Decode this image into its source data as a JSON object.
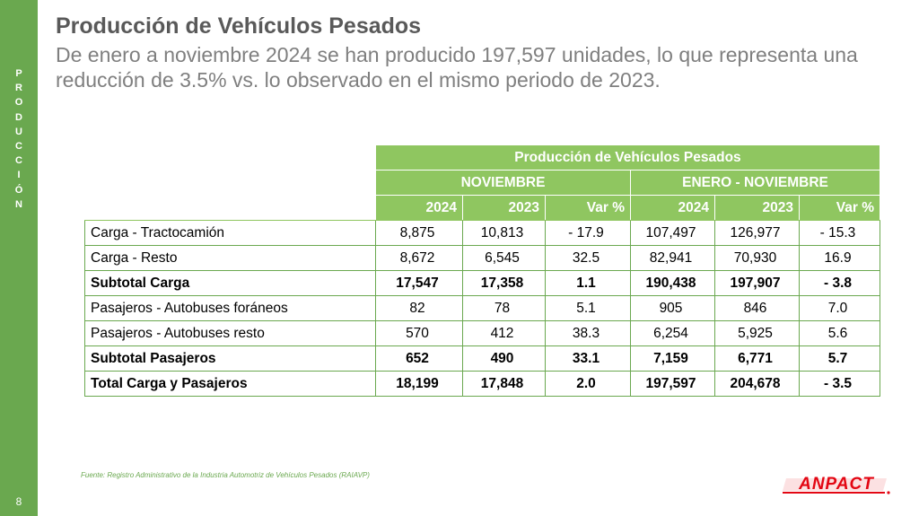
{
  "sidebar": {
    "section_label": [
      "P",
      "R",
      "O",
      "D",
      "U",
      "C",
      "C",
      "I",
      "Ó",
      "N"
    ],
    "page_number": "8"
  },
  "header": {
    "title": "Producción de Vehículos Pesados",
    "subtitle": "De enero a noviembre 2024 se han producido 197,597 unidades, lo que representa una reducción de 3.5% vs. lo observado en el mismo periodo de 2023."
  },
  "table": {
    "title": "Producción de Vehículos Pesados",
    "groups": [
      "NOVIEMBRE",
      "ENERO - NOVIEMBRE"
    ],
    "columns": [
      "2024",
      "2023",
      "Var %",
      "2024",
      "2023",
      "Var %"
    ],
    "rows": [
      {
        "label": "Carga - Tractocamión",
        "bold": false,
        "values": [
          "8,875",
          "10,813",
          "- 17.9",
          "107,497",
          "126,977",
          "- 15.3"
        ]
      },
      {
        "label": "Carga - Resto",
        "bold": false,
        "values": [
          "8,672",
          "6,545",
          "32.5",
          "82,941",
          "70,930",
          "16.9"
        ]
      },
      {
        "label": "Subtotal Carga",
        "bold": true,
        "values": [
          "17,547",
          "17,358",
          "1.1",
          "190,438",
          "197,907",
          "- 3.8"
        ]
      },
      {
        "label": "Pasajeros - Autobuses foráneos",
        "bold": false,
        "values": [
          "82",
          "78",
          "5.1",
          "905",
          "846",
          "7.0"
        ]
      },
      {
        "label": "Pasajeros - Autobuses resto",
        "bold": false,
        "values": [
          "570",
          "412",
          "38.3",
          "6,254",
          "5,925",
          "5.6"
        ]
      },
      {
        "label": "Subtotal Pasajeros",
        "bold": true,
        "values": [
          "652",
          "490",
          "33.1",
          "7,159",
          "6,771",
          "5.7"
        ]
      },
      {
        "label": "Total Carga y Pasajeros",
        "bold": true,
        "values": [
          "18,199",
          "17,848",
          "2.0",
          "197,597",
          "204,678",
          "- 3.5"
        ]
      }
    ]
  },
  "footer": {
    "source": "Fuente: Registro Administrativo de la Industria Automotriz de Vehículos Pesados (RAIAVP)",
    "logo_text": "ANPACT"
  },
  "colors": {
    "sidebar": "#6aa84f",
    "header_fill": "#8fc660",
    "border": "#6aa84f",
    "logo_red": "#e30613"
  }
}
